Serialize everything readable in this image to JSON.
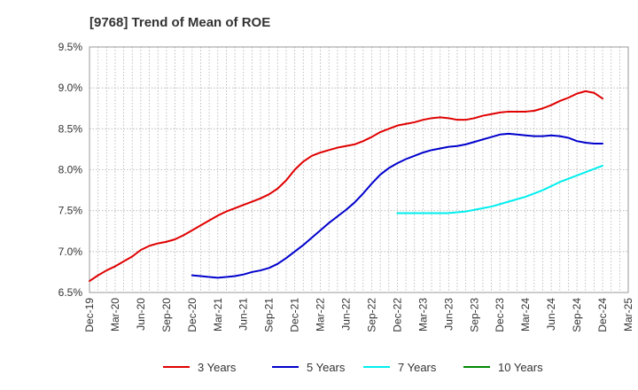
{
  "chart_data": {
    "type": "line",
    "title": "[9768]  Trend of Mean of ROE",
    "xlabel": "",
    "ylabel": "",
    "ylim": [
      6.5,
      9.5
    ],
    "y_ticks": [
      "6.5%",
      "7.0%",
      "7.5%",
      "8.0%",
      "8.5%",
      "9.0%",
      "9.5%"
    ],
    "y_tick_values": [
      6.5,
      7.0,
      7.5,
      8.0,
      8.5,
      9.0,
      9.5
    ],
    "x_ticks": [
      "Dec-19",
      "Mar-20",
      "Jun-20",
      "Sep-20",
      "Dec-20",
      "Mar-21",
      "Jun-21",
      "Sep-21",
      "Dec-21",
      "Mar-22",
      "Jun-22",
      "Sep-22",
      "Dec-22",
      "Mar-23",
      "Jun-23",
      "Sep-23",
      "Dec-23",
      "Mar-24",
      "Jun-24",
      "Sep-24",
      "Dec-24",
      "Mar-25"
    ],
    "grid": true,
    "legend_position": "bottom",
    "series": [
      {
        "name": "3 Years",
        "color": "#e00000",
        "values": [
          [
            "Dec-19",
            6.64
          ],
          [
            "Jan-20",
            6.71
          ],
          [
            "Feb-20",
            6.77
          ],
          [
            "Mar-20",
            6.82
          ],
          [
            "Apr-20",
            6.88
          ],
          [
            "May-20",
            6.94
          ],
          [
            "Jun-20",
            7.02
          ],
          [
            "Jul-20",
            7.07
          ],
          [
            "Aug-20",
            7.1
          ],
          [
            "Sep-20",
            7.12
          ],
          [
            "Oct-20",
            7.15
          ],
          [
            "Nov-20",
            7.2
          ],
          [
            "Dec-20",
            7.26
          ],
          [
            "Jan-21",
            7.32
          ],
          [
            "Feb-21",
            7.38
          ],
          [
            "Mar-21",
            7.44
          ],
          [
            "Apr-21",
            7.49
          ],
          [
            "May-21",
            7.53
          ],
          [
            "Jun-21",
            7.57
          ],
          [
            "Jul-21",
            7.61
          ],
          [
            "Aug-21",
            7.65
          ],
          [
            "Sep-21",
            7.7
          ],
          [
            "Oct-21",
            7.77
          ],
          [
            "Nov-21",
            7.87
          ],
          [
            "Dec-21",
            8.0
          ],
          [
            "Jan-22",
            8.1
          ],
          [
            "Feb-22",
            8.17
          ],
          [
            "Mar-22",
            8.21
          ],
          [
            "Apr-22",
            8.24
          ],
          [
            "May-22",
            8.27
          ],
          [
            "Jun-22",
            8.29
          ],
          [
            "Jul-22",
            8.31
          ],
          [
            "Aug-22",
            8.35
          ],
          [
            "Sep-22",
            8.4
          ],
          [
            "Oct-22",
            8.46
          ],
          [
            "Nov-22",
            8.5
          ],
          [
            "Dec-22",
            8.54
          ],
          [
            "Jan-23",
            8.56
          ],
          [
            "Feb-23",
            8.58
          ],
          [
            "Mar-23",
            8.61
          ],
          [
            "Apr-23",
            8.63
          ],
          [
            "May-23",
            8.64
          ],
          [
            "Jun-23",
            8.63
          ],
          [
            "Jul-23",
            8.61
          ],
          [
            "Aug-23",
            8.61
          ],
          [
            "Sep-23",
            8.63
          ],
          [
            "Oct-23",
            8.66
          ],
          [
            "Nov-23",
            8.68
          ],
          [
            "Dec-23",
            8.7
          ],
          [
            "Jan-24",
            8.71
          ],
          [
            "Feb-24",
            8.71
          ],
          [
            "Mar-24",
            8.71
          ],
          [
            "Apr-24",
            8.72
          ],
          [
            "May-24",
            8.75
          ],
          [
            "Jun-24",
            8.79
          ],
          [
            "Jul-24",
            8.84
          ],
          [
            "Aug-24",
            8.88
          ],
          [
            "Sep-24",
            8.93
          ],
          [
            "Oct-24",
            8.96
          ],
          [
            "Nov-24",
            8.94
          ],
          [
            "Dec-24",
            8.87
          ]
        ]
      },
      {
        "name": "5 Years",
        "color": "#0000cc",
        "values": [
          [
            "Dec-20",
            6.71
          ],
          [
            "Jan-21",
            6.7
          ],
          [
            "Feb-21",
            6.69
          ],
          [
            "Mar-21",
            6.68
          ],
          [
            "Apr-21",
            6.69
          ],
          [
            "May-21",
            6.7
          ],
          [
            "Jun-21",
            6.72
          ],
          [
            "Jul-21",
            6.75
          ],
          [
            "Aug-21",
            6.77
          ],
          [
            "Sep-21",
            6.8
          ],
          [
            "Oct-21",
            6.85
          ],
          [
            "Nov-21",
            6.92
          ],
          [
            "Dec-21",
            7.0
          ],
          [
            "Jan-22",
            7.08
          ],
          [
            "Feb-22",
            7.17
          ],
          [
            "Mar-22",
            7.26
          ],
          [
            "Apr-22",
            7.35
          ],
          [
            "May-22",
            7.43
          ],
          [
            "Jun-22",
            7.51
          ],
          [
            "Jul-22",
            7.6
          ],
          [
            "Aug-22",
            7.71
          ],
          [
            "Sep-22",
            7.83
          ],
          [
            "Oct-22",
            7.94
          ],
          [
            "Nov-22",
            8.02
          ],
          [
            "Dec-22",
            8.08
          ],
          [
            "Jan-23",
            8.13
          ],
          [
            "Feb-23",
            8.17
          ],
          [
            "Mar-23",
            8.21
          ],
          [
            "Apr-23",
            8.24
          ],
          [
            "May-23",
            8.26
          ],
          [
            "Jun-23",
            8.28
          ],
          [
            "Jul-23",
            8.29
          ],
          [
            "Aug-23",
            8.31
          ],
          [
            "Sep-23",
            8.34
          ],
          [
            "Oct-23",
            8.37
          ],
          [
            "Nov-23",
            8.4
          ],
          [
            "Dec-23",
            8.43
          ],
          [
            "Jan-24",
            8.44
          ],
          [
            "Feb-24",
            8.43
          ],
          [
            "Mar-24",
            8.42
          ],
          [
            "Apr-24",
            8.41
          ],
          [
            "May-24",
            8.41
          ],
          [
            "Jun-24",
            8.42
          ],
          [
            "Jul-24",
            8.41
          ],
          [
            "Aug-24",
            8.39
          ],
          [
            "Sep-24",
            8.35
          ],
          [
            "Oct-24",
            8.33
          ],
          [
            "Nov-24",
            8.32
          ],
          [
            "Dec-24",
            8.32
          ]
        ]
      },
      {
        "name": "7 Years",
        "color": "#00eeee",
        "values": [
          [
            "Dec-22",
            7.47
          ],
          [
            "Jan-23",
            7.47
          ],
          [
            "Feb-23",
            7.47
          ],
          [
            "Mar-23",
            7.47
          ],
          [
            "Apr-23",
            7.47
          ],
          [
            "May-23",
            7.47
          ],
          [
            "Jun-23",
            7.47
          ],
          [
            "Jul-23",
            7.48
          ],
          [
            "Aug-23",
            7.49
          ],
          [
            "Sep-23",
            7.51
          ],
          [
            "Oct-23",
            7.53
          ],
          [
            "Nov-23",
            7.55
          ],
          [
            "Dec-23",
            7.58
          ],
          [
            "Jan-24",
            7.61
          ],
          [
            "Feb-24",
            7.64
          ],
          [
            "Mar-24",
            7.67
          ],
          [
            "Apr-24",
            7.71
          ],
          [
            "May-24",
            7.75
          ],
          [
            "Jun-24",
            7.8
          ],
          [
            "Jul-24",
            7.85
          ],
          [
            "Aug-24",
            7.89
          ],
          [
            "Sep-24",
            7.93
          ],
          [
            "Oct-24",
            7.97
          ],
          [
            "Nov-24",
            8.01
          ],
          [
            "Dec-24",
            8.05
          ]
        ]
      },
      {
        "name": "10 Years",
        "color": "#008800",
        "values": []
      }
    ]
  }
}
